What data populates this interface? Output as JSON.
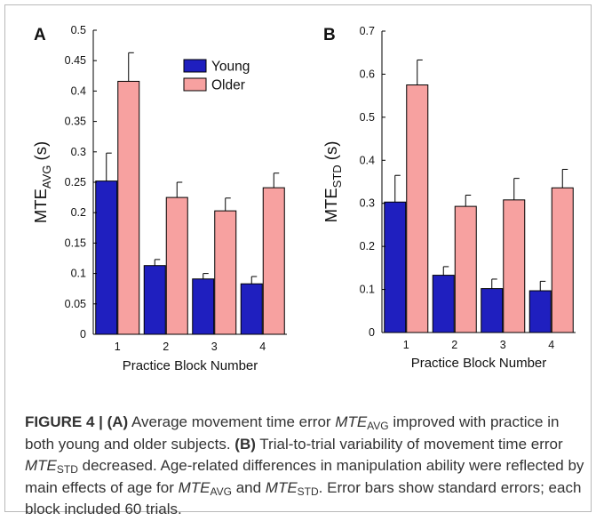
{
  "chart_data": [
    {
      "type": "bar",
      "panel_label": "A",
      "categories": [
        "1",
        "2",
        "3",
        "4"
      ],
      "series": [
        {
          "name": "Young",
          "values": [
            0.252,
            0.113,
            0.091,
            0.083
          ],
          "errors": [
            0.046,
            0.01,
            0.009,
            0.012
          ]
        },
        {
          "name": "Older",
          "values": [
            0.416,
            0.225,
            0.203,
            0.241
          ],
          "errors": [
            0.047,
            0.025,
            0.021,
            0.024
          ]
        }
      ],
      "xlabel": "Practice Block Number",
      "ylabel_main": "MTE",
      "ylabel_sub": "AVG",
      "ylabel_unit": "(s)",
      "ylim": [
        0,
        0.5
      ],
      "yticks": [
        "0",
        "0.05",
        "0.1",
        "0.15",
        "0.2",
        "0.25",
        "0.3",
        "0.35",
        "0.4",
        "0.45",
        "0.5"
      ],
      "legend_position": "top-center",
      "grid": false
    },
    {
      "type": "bar",
      "panel_label": "B",
      "categories": [
        "1",
        "2",
        "3",
        "4"
      ],
      "series": [
        {
          "name": "Young",
          "values": [
            0.303,
            0.133,
            0.102,
            0.097
          ],
          "errors": [
            0.062,
            0.02,
            0.022,
            0.022
          ]
        },
        {
          "name": "Older",
          "values": [
            0.575,
            0.293,
            0.308,
            0.336
          ],
          "errors": [
            0.058,
            0.026,
            0.05,
            0.043
          ]
        }
      ],
      "xlabel": "Practice Block Number",
      "ylabel_main": "MTE",
      "ylabel_sub": "STD",
      "ylabel_unit": "(s)",
      "ylim": [
        0,
        0.7
      ],
      "yticks": [
        "0",
        "0.1",
        "0.2",
        "0.3",
        "0.4",
        "0.5",
        "0.6",
        "0.7"
      ],
      "grid": false
    }
  ],
  "colors": {
    "young": "#1f1fbf",
    "older": "#f7a1a0",
    "axis": "#000000"
  },
  "caption": {
    "figure_label": "FIGURE 4 | ",
    "part_a": "(A)",
    "text_1": " Average movement time error ",
    "var_main_1": "MTE",
    "var_sub_1": "AVG",
    "text_2": " improved with practice in both young and older subjects. ",
    "part_b": "(B)",
    "text_3": " Trial-to-trial variability of movement time error ",
    "var_main_2": "MTE",
    "var_sub_2": "STD",
    "text_4": " decreased. Age-related differences in manipulation ability were reflected by main effects of age for ",
    "var_main_3": "MTE",
    "var_sub_3": "AVG",
    "text_5": " and ",
    "var_main_4": "MTE",
    "var_sub_4": "STD",
    "text_6": ". Error bars show standard errors; each block included 60 trials."
  }
}
